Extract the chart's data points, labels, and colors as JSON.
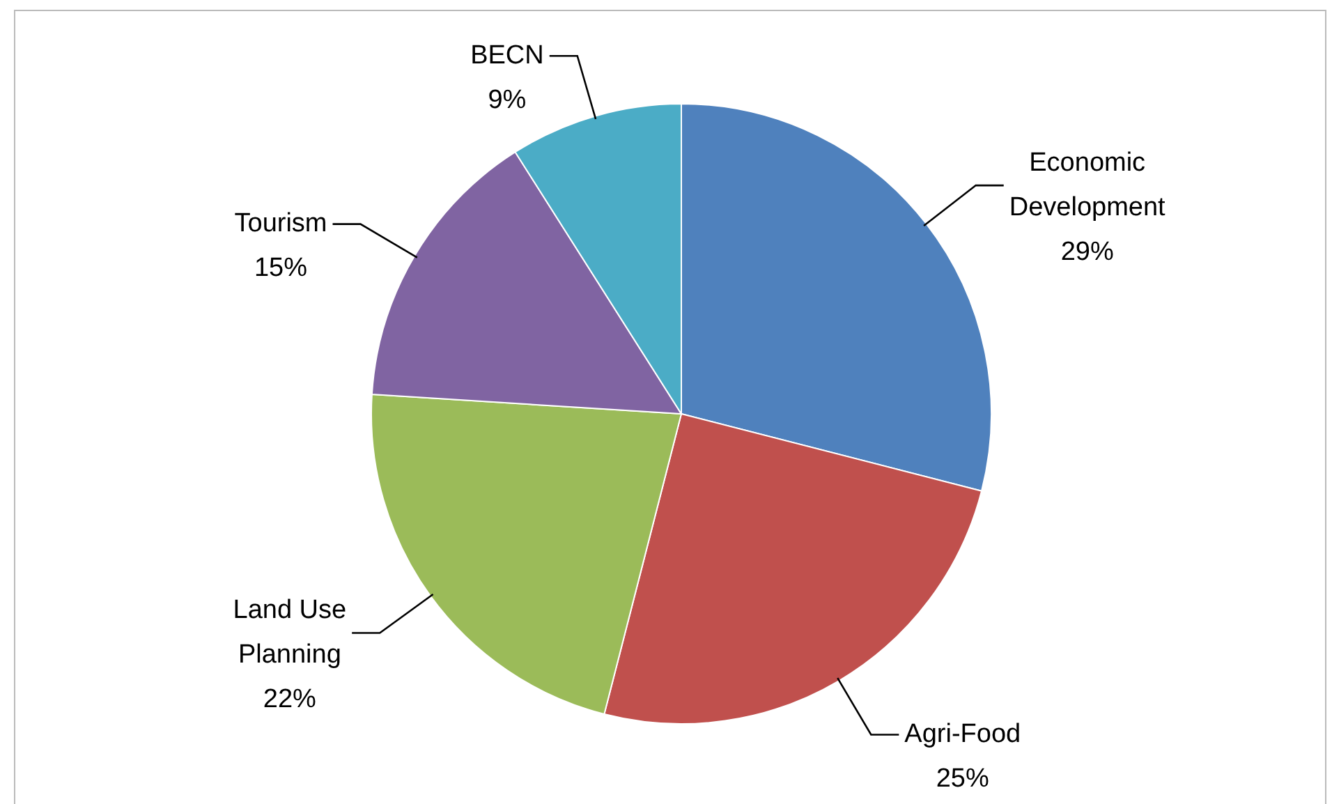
{
  "chart_data": {
    "type": "pie",
    "categories": [
      "Economic Development",
      "Agri-Food",
      "Land Use Planning",
      "Tourism",
      "BECN"
    ],
    "values": [
      29,
      25,
      22,
      15,
      9
    ],
    "value_labels": [
      "29%",
      "25%",
      "22%",
      "15%",
      "9%"
    ],
    "colors": [
      "#4f81bd",
      "#c0504d",
      "#9bbb59",
      "#8064a2",
      "#4bacc6"
    ],
    "legend": false
  }
}
